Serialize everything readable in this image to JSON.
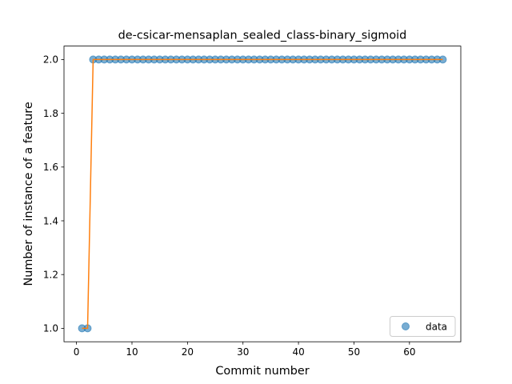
{
  "chart_data": {
    "type": "scatter",
    "title": "de-csicar-mensaplan_sealed_class-binary_sigmoid",
    "xlabel": "Commit number",
    "ylabel": "Number of instance of a feature",
    "xlim": [
      -2.25,
      69.25
    ],
    "ylim": [
      0.95,
      2.05
    ],
    "xticks": [
      0,
      10,
      20,
      30,
      40,
      50,
      60
    ],
    "yticks": [
      1.0,
      1.2,
      1.4,
      1.6,
      1.8,
      2.0
    ],
    "xtick_labels": [
      "0",
      "10",
      "20",
      "30",
      "40",
      "50",
      "60"
    ],
    "ytick_labels": [
      "1.0",
      "1.2",
      "1.4",
      "1.6",
      "1.8",
      "2.0"
    ],
    "grid": false,
    "legend_position": "lower-right",
    "colors": {
      "points": "#1f77b4",
      "fit": "#ff7f0e"
    },
    "series": [
      {
        "name": "data",
        "style": "markers",
        "x": [
          1,
          2,
          3,
          4,
          5,
          6,
          7,
          8,
          9,
          10,
          11,
          12,
          13,
          14,
          15,
          16,
          17,
          18,
          19,
          20,
          21,
          22,
          23,
          24,
          25,
          26,
          27,
          28,
          29,
          30,
          31,
          32,
          33,
          34,
          35,
          36,
          37,
          38,
          39,
          40,
          41,
          42,
          43,
          44,
          45,
          46,
          47,
          48,
          49,
          50,
          51,
          52,
          53,
          54,
          55,
          56,
          57,
          58,
          59,
          60,
          61,
          62,
          63,
          64,
          65,
          66
        ],
        "y": [
          1,
          1,
          2,
          2,
          2,
          2,
          2,
          2,
          2,
          2,
          2,
          2,
          2,
          2,
          2,
          2,
          2,
          2,
          2,
          2,
          2,
          2,
          2,
          2,
          2,
          2,
          2,
          2,
          2,
          2,
          2,
          2,
          2,
          2,
          2,
          2,
          2,
          2,
          2,
          2,
          2,
          2,
          2,
          2,
          2,
          2,
          2,
          2,
          2,
          2,
          2,
          2,
          2,
          2,
          2,
          2,
          2,
          2,
          2,
          2,
          2,
          2,
          2,
          2,
          2,
          2
        ]
      },
      {
        "style": "line",
        "x": [
          1,
          2,
          3,
          4,
          5,
          6,
          7,
          8,
          9,
          10,
          11,
          12,
          13,
          14,
          15,
          16,
          17,
          18,
          19,
          20,
          21,
          22,
          23,
          24,
          25,
          26,
          27,
          28,
          29,
          30,
          31,
          32,
          33,
          34,
          35,
          36,
          37,
          38,
          39,
          40,
          41,
          42,
          43,
          44,
          45,
          46,
          47,
          48,
          49,
          50,
          51,
          52,
          53,
          54,
          55,
          56,
          57,
          58,
          59,
          60,
          61,
          62,
          63,
          64,
          65,
          66
        ],
        "y": [
          1,
          1,
          2,
          2,
          2,
          2,
          2,
          2,
          2,
          2,
          2,
          2,
          2,
          2,
          2,
          2,
          2,
          2,
          2,
          2,
          2,
          2,
          2,
          2,
          2,
          2,
          2,
          2,
          2,
          2,
          2,
          2,
          2,
          2,
          2,
          2,
          2,
          2,
          2,
          2,
          2,
          2,
          2,
          2,
          2,
          2,
          2,
          2,
          2,
          2,
          2,
          2,
          2,
          2,
          2,
          2,
          2,
          2,
          2,
          2,
          2,
          2,
          2,
          2,
          2,
          2
        ]
      }
    ]
  }
}
